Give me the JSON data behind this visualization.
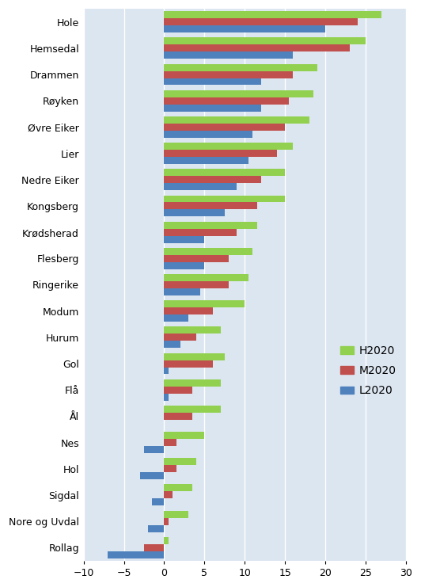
{
  "categories": [
    "Hole",
    "Hemsedal",
    "Drammen",
    "Røyken",
    "Øvre Eiker",
    "Lier",
    "Nedre Eiker",
    "Kongsberg",
    "Krødsherad",
    "Flesberg",
    "Ringerike",
    "Modum",
    "Hurum",
    "Gol",
    "Flå",
    "Ål",
    "Nes",
    "Hol",
    "Sigdal",
    "Nore og Uvdal",
    "Rollag"
  ],
  "H2020": [
    27,
    25,
    19,
    18.5,
    18,
    16,
    15,
    15,
    11.5,
    11,
    10.5,
    10,
    7,
    7.5,
    7,
    7,
    5,
    4,
    3.5,
    3,
    0.5
  ],
  "M2020": [
    24,
    23,
    16,
    15.5,
    15,
    14,
    12,
    11.5,
    9,
    8,
    8,
    6,
    4,
    6,
    3.5,
    3.5,
    1.5,
    1.5,
    1,
    0.5,
    -2.5
  ],
  "L2020": [
    20,
    16,
    12,
    12,
    11,
    10.5,
    9,
    7.5,
    5,
    5,
    4.5,
    3,
    2,
    0.5,
    0.5,
    0,
    -2.5,
    -3,
    -1.5,
    -2,
    -7
  ],
  "colors": {
    "H2020": "#92d050",
    "M2020": "#c0504d",
    "L2020": "#4f81bd"
  },
  "xlim": [
    -10,
    30
  ],
  "xticks": [
    -10,
    -5,
    0,
    5,
    10,
    15,
    20,
    25,
    30
  ],
  "background_color": "#ffffff",
  "plot_bg_color": "#dce6f1",
  "grid_color": "#ffffff"
}
